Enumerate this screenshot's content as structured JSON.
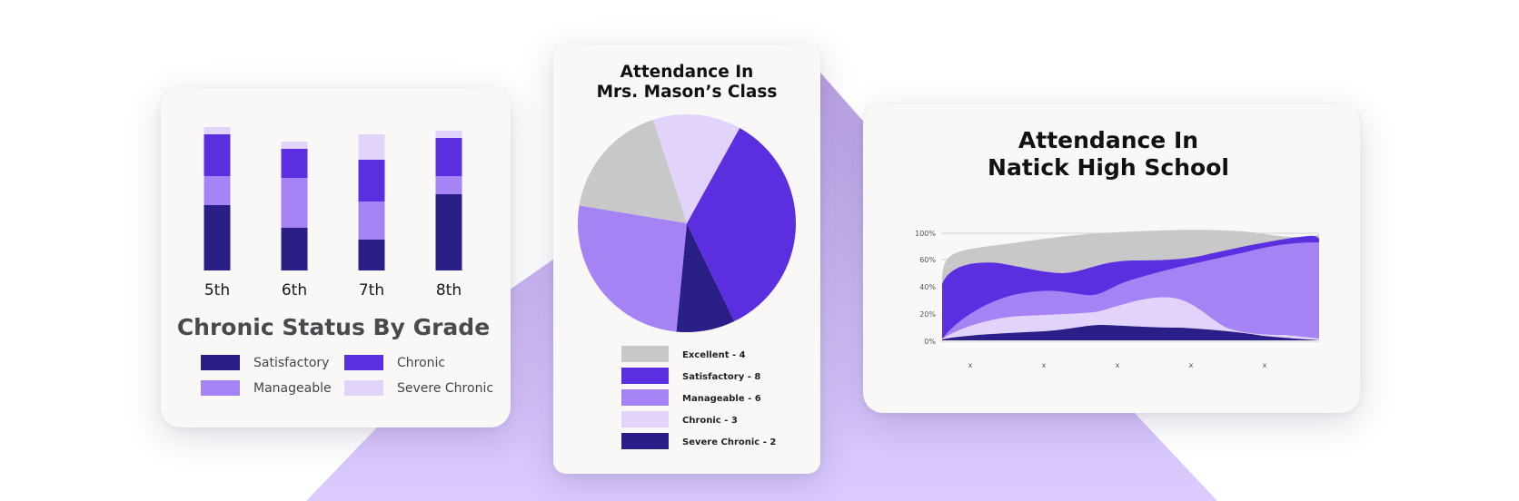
{
  "colors": {
    "satisfactory": "#2a1f86",
    "chronic": "#5b2ee0",
    "manageable": "#a683f5",
    "severe_chronic": "#e2d3fb",
    "excellent": "#c8c8c8",
    "backdrop": "#c7b3ea"
  },
  "chart_data": [
    {
      "type": "bar",
      "title": "Chronic Status By Grade",
      "stacked": true,
      "categories": [
        "5th",
        "6th",
        "7th",
        "8th"
      ],
      "series": [
        {
          "name": "Satisfactory",
          "color": "#2a1f86",
          "values": [
            72,
            47,
            34,
            84
          ]
        },
        {
          "name": "Manageable",
          "color": "#a683f5",
          "values": [
            32,
            55,
            42,
            20
          ]
        },
        {
          "name": "Chronic",
          "color": "#5b2ee0",
          "values": [
            46,
            32,
            46,
            42
          ]
        },
        {
          "name": "Severe Chronic",
          "color": "#e2d3fb",
          "values": [
            8,
            8,
            28,
            8
          ]
        }
      ],
      "legend": [
        {
          "label": "Satisfactory",
          "color": "#2a1f86"
        },
        {
          "label": "Chronic",
          "color": "#5b2ee0"
        },
        {
          "label": "Manageable",
          "color": "#a683f5"
        },
        {
          "label": "Severe Chronic",
          "color": "#e2d3fb"
        }
      ],
      "grid": false,
      "legend_position": "bottom"
    },
    {
      "type": "pie",
      "title_lines": [
        "Attendance In",
        "Mrs. Mason’s Class"
      ],
      "slices": [
        {
          "label": "Excellent - 4",
          "value": 4,
          "color": "#c8c8c8"
        },
        {
          "label": "Satisfactory - 8",
          "value": 8,
          "color": "#5b2ee0"
        },
        {
          "label": "Manageable - 6",
          "value": 6,
          "color": "#a683f5"
        },
        {
          "label": "Chronic - 3",
          "value": 3,
          "color": "#e2d3fb"
        },
        {
          "label": "Severe Chronic - 2",
          "value": 2,
          "color": "#2a1f86"
        }
      ],
      "legend_position": "bottom"
    },
    {
      "type": "area",
      "title_lines": [
        "Attendance In",
        "Natick High School"
      ],
      "y_ticks": [
        "100%",
        "60%",
        "40%",
        "20%",
        "0%"
      ],
      "x_ticks": [
        "x",
        "x",
        "x",
        "x",
        "x"
      ],
      "grid": true
    }
  ]
}
